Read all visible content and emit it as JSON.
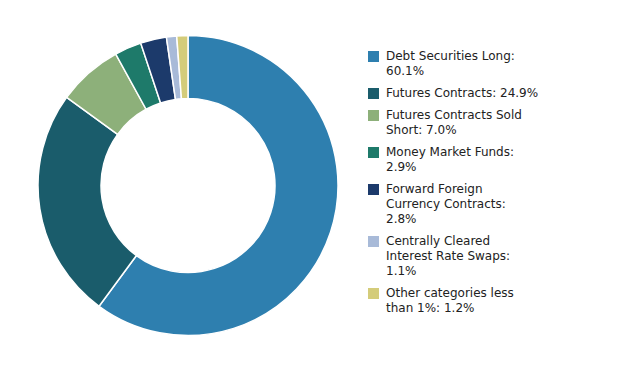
{
  "chart_data": {
    "type": "pie",
    "categories": [
      "Debt Securities Long:\n60.1%",
      "Futures Contracts: 24.9%",
      "Futures Contracts Sold\nShort: 7.0%",
      "Money Market Funds:\n2.9%",
      "Forward Foreign\nCurrency Contracts:\n2.8%",
      "Centrally Cleared\nInterest Rate Swaps:\n1.1%",
      "Other categories less\nthan 1%: 1.2%"
    ],
    "values": [
      60.1,
      24.9,
      7.0,
      2.9,
      2.8,
      1.1,
      1.2
    ],
    "colors": [
      "#2E7FAF",
      "#1A5C6B",
      "#8DB07A",
      "#1E7A6A",
      "#1C3A6B",
      "#A8BAD8",
      "#D4CC7A"
    ],
    "legend": "right"
  }
}
